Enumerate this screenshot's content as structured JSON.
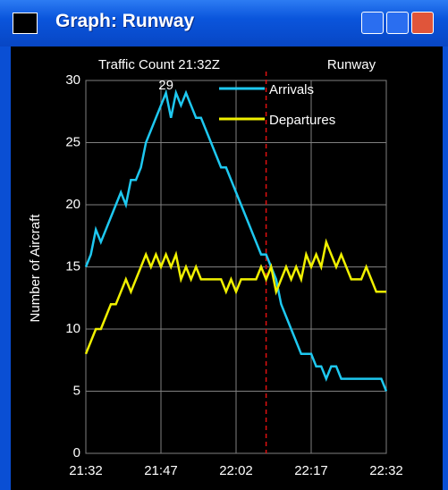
{
  "window_title": "Graph: Runway",
  "chart_data": {
    "type": "line",
    "title": "Traffic Count 21:32Z",
    "subtitle": "Runway",
    "y_label": "Number of Aircraft",
    "x": [
      0,
      1,
      2,
      3,
      4,
      5,
      6,
      7,
      8,
      9,
      10,
      11,
      12,
      13,
      14,
      15,
      16,
      17,
      18,
      19,
      20,
      21,
      22,
      23,
      24,
      25,
      26,
      27,
      28,
      29,
      30,
      31,
      32,
      33,
      34,
      35,
      36,
      37,
      38,
      39,
      40,
      41,
      42,
      43,
      44,
      45,
      46,
      47,
      48,
      49,
      50,
      51,
      52,
      53,
      54,
      55,
      56,
      57,
      58,
      59,
      60
    ],
    "series": [
      {
        "name": "Arrivals",
        "color": "#1ec8f0",
        "values": [
          15,
          16,
          18,
          17,
          18,
          19,
          20,
          21,
          20,
          22,
          22,
          23,
          25,
          26,
          27,
          28,
          29,
          27,
          29,
          28,
          29,
          28,
          27,
          27,
          26,
          25,
          24,
          23,
          23,
          22,
          21,
          20,
          19,
          18,
          17,
          16,
          16,
          15,
          14,
          12,
          11,
          10,
          9,
          8,
          8,
          8,
          7,
          7,
          6,
          7,
          7,
          6,
          6,
          6,
          6,
          6,
          6,
          6,
          6,
          6,
          5
        ]
      },
      {
        "name": "Departures",
        "color": "#f0f000",
        "values": [
          8,
          9,
          10,
          10,
          11,
          12,
          12,
          13,
          14,
          13,
          14,
          15,
          16,
          15,
          16,
          15,
          16,
          15,
          16,
          14,
          15,
          14,
          15,
          14,
          14,
          14,
          14,
          14,
          13,
          14,
          13,
          14,
          14,
          14,
          14,
          15,
          14,
          15,
          13,
          14,
          15,
          14,
          15,
          14,
          16,
          15,
          16,
          15,
          17,
          16,
          15,
          16,
          15,
          14,
          14,
          14,
          15,
          14,
          13,
          13,
          13
        ]
      }
    ],
    "annotations": [
      {
        "text": "29",
        "x": 16,
        "y": 29
      }
    ],
    "now_line": {
      "x": 36,
      "color": "#e01010"
    },
    "xlim": [
      0,
      60
    ],
    "xticks": [
      {
        "value": 0,
        "label": "21:32"
      },
      {
        "value": 15,
        "label": "21:47"
      },
      {
        "value": 30,
        "label": "22:02"
      },
      {
        "value": 45,
        "label": "22:17"
      },
      {
        "value": 60,
        "label": "22:32"
      }
    ],
    "ylim": [
      0,
      30
    ],
    "yticks": [
      0,
      5,
      10,
      15,
      20,
      25,
      30
    ],
    "grid": true
  }
}
